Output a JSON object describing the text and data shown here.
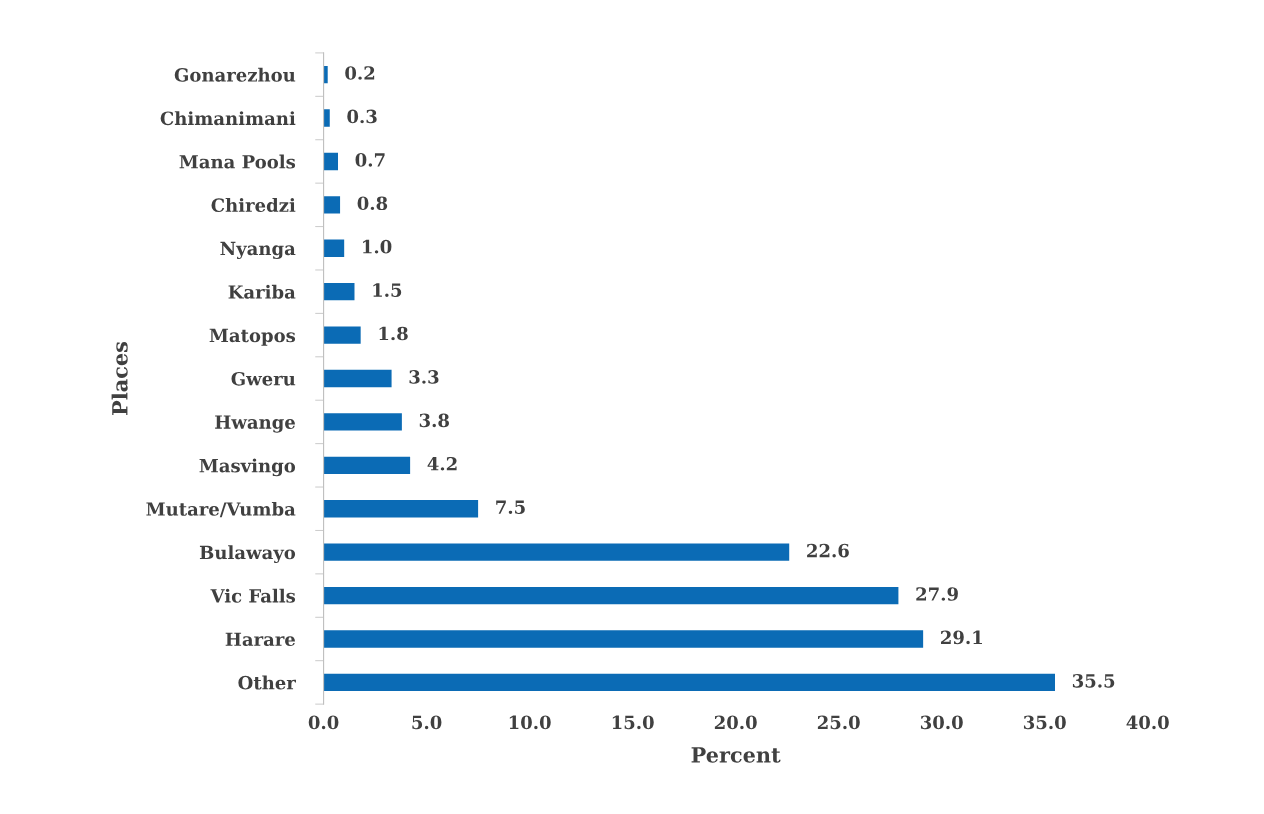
{
  "chart_data": {
    "type": "bar",
    "orientation": "horizontal",
    "xlabel": "Percent",
    "ylabel": "Places",
    "categories": [
      "Gonarezhou",
      "Chimanimani",
      "Mana Pools",
      "Chiredzi",
      "Nyanga",
      "Kariba",
      "Matopos",
      "Gweru",
      "Hwange",
      "Masvingo",
      "Mutare/Vumba",
      "Bulawayo",
      "Vic Falls",
      "Harare",
      "Other"
    ],
    "values": [
      0.2,
      0.3,
      0.7,
      0.8,
      1.0,
      1.5,
      1.8,
      3.3,
      3.8,
      4.2,
      7.5,
      22.6,
      27.9,
      29.1,
      35.5
    ],
    "color": "#0b6bb5",
    "value_labels": [
      "0.2",
      "0.3",
      "0.7",
      "0.8",
      "1.0",
      "1.5",
      "1.8",
      "3.3",
      "3.8",
      "4.2",
      "7.5",
      "22.6",
      "27.9",
      "29.1",
      "35.5"
    ],
    "xlim": [
      0,
      40
    ],
    "xticks": [
      {
        "value": 0,
        "label": "0.0"
      },
      {
        "value": 5,
        "label": "5.0"
      },
      {
        "value": 10,
        "label": "10.0"
      },
      {
        "value": 15,
        "label": "15.0"
      },
      {
        "value": 20,
        "label": "20.0"
      },
      {
        "value": 25,
        "label": "25.0"
      },
      {
        "value": 30,
        "label": "30.0"
      },
      {
        "value": 35,
        "label": "35.0"
      },
      {
        "value": 40,
        "label": "40.0"
      }
    ],
    "grid": false,
    "legend": false
  }
}
